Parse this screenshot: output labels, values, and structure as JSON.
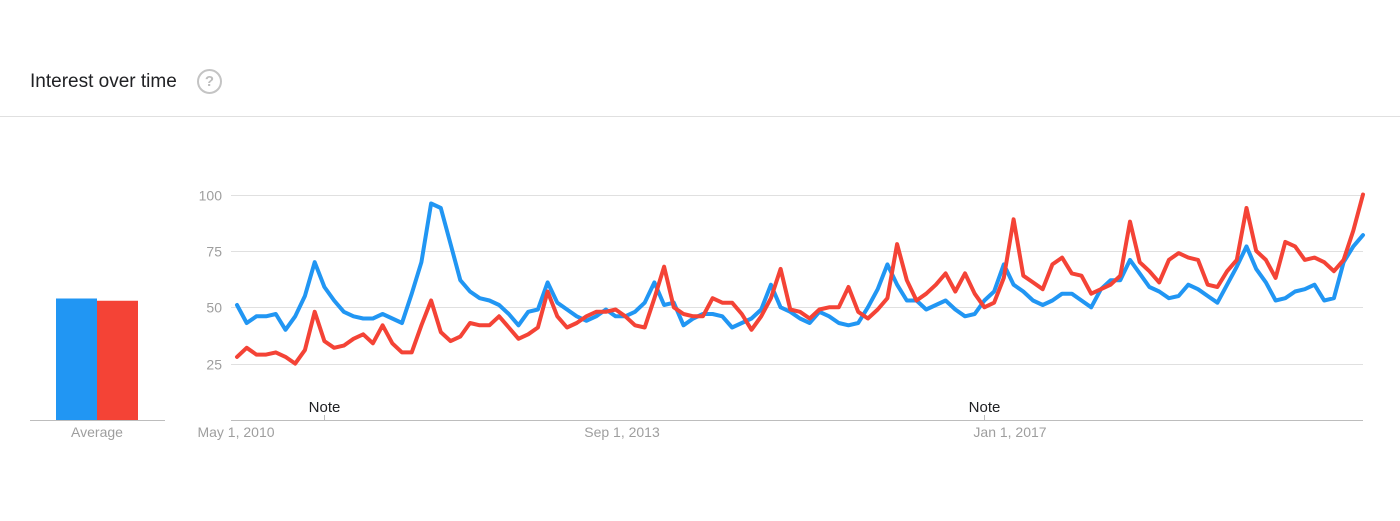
{
  "header": {
    "title": "Interest over time",
    "help_icon": "help-circle-icon"
  },
  "colors": {
    "series1": "#2196F3",
    "series2": "#F44336",
    "grid": "#e0e0e0",
    "axis": "#bdbdbd"
  },
  "chart_data": [
    {
      "type": "bar",
      "categories": [
        "Average"
      ],
      "series": [
        {
          "values": [
            54
          ]
        },
        {
          "values": [
            53
          ]
        }
      ],
      "ylim": [
        0,
        100
      ]
    },
    {
      "type": "line",
      "x_tick_labels": [
        "May 1, 2010",
        "Sep 1, 2013",
        "Jan 1, 2017"
      ],
      "y_ticks": [
        25,
        50,
        75,
        100
      ],
      "ylim": [
        0,
        100
      ],
      "grid": true,
      "annotations": [
        {
          "label": "Note",
          "x_index": 9
        },
        {
          "label": "Note",
          "x_index": 77
        }
      ],
      "series": [
        {
          "values": [
            51,
            43,
            46,
            46,
            47,
            40,
            46,
            55,
            70,
            59,
            53,
            48,
            46,
            45,
            45,
            47,
            45,
            43,
            56,
            70,
            96,
            94,
            78,
            62,
            57,
            54,
            53,
            51,
            47,
            42,
            48,
            49,
            61,
            52,
            49,
            46,
            44,
            46,
            49,
            46,
            46,
            48,
            52,
            61,
            51,
            52,
            42,
            45,
            47,
            47,
            46,
            41,
            43,
            45,
            49,
            60,
            50,
            48,
            45,
            43,
            48,
            46,
            43,
            42,
            43,
            50,
            58,
            69,
            60,
            53,
            53,
            49,
            51,
            53,
            49,
            46,
            47,
            53,
            57,
            69,
            60,
            57,
            53,
            51,
            53,
            56,
            56,
            53,
            50,
            58,
            62,
            62,
            71,
            65,
            59,
            57,
            54,
            55,
            60,
            58,
            55,
            52,
            60,
            68,
            77,
            67,
            61,
            53,
            54,
            57,
            58,
            60,
            53,
            54,
            70,
            77,
            82
          ]
        },
        {
          "values": [
            28,
            32,
            29,
            29,
            30,
            28,
            25,
            31,
            48,
            35,
            32,
            33,
            36,
            38,
            34,
            42,
            34,
            30,
            30,
            42,
            53,
            39,
            35,
            37,
            43,
            42,
            42,
            46,
            41,
            36,
            38,
            41,
            57,
            46,
            41,
            43,
            46,
            48,
            48,
            49,
            46,
            42,
            41,
            54,
            68,
            50,
            47,
            46,
            46,
            54,
            52,
            52,
            47,
            40,
            46,
            54,
            67,
            49,
            48,
            45,
            49,
            50,
            50,
            59,
            48,
            45,
            49,
            54,
            78,
            62,
            53,
            56,
            60,
            65,
            57,
            65,
            56,
            50,
            52,
            63,
            89,
            64,
            61,
            58,
            69,
            72,
            65,
            64,
            56,
            58,
            60,
            64,
            88,
            70,
            66,
            61,
            71,
            74,
            72,
            71,
            60,
            59,
            66,
            71,
            94,
            75,
            71,
            63,
            79,
            77,
            71,
            72,
            70,
            66,
            71,
            84,
            100
          ]
        }
      ]
    }
  ]
}
